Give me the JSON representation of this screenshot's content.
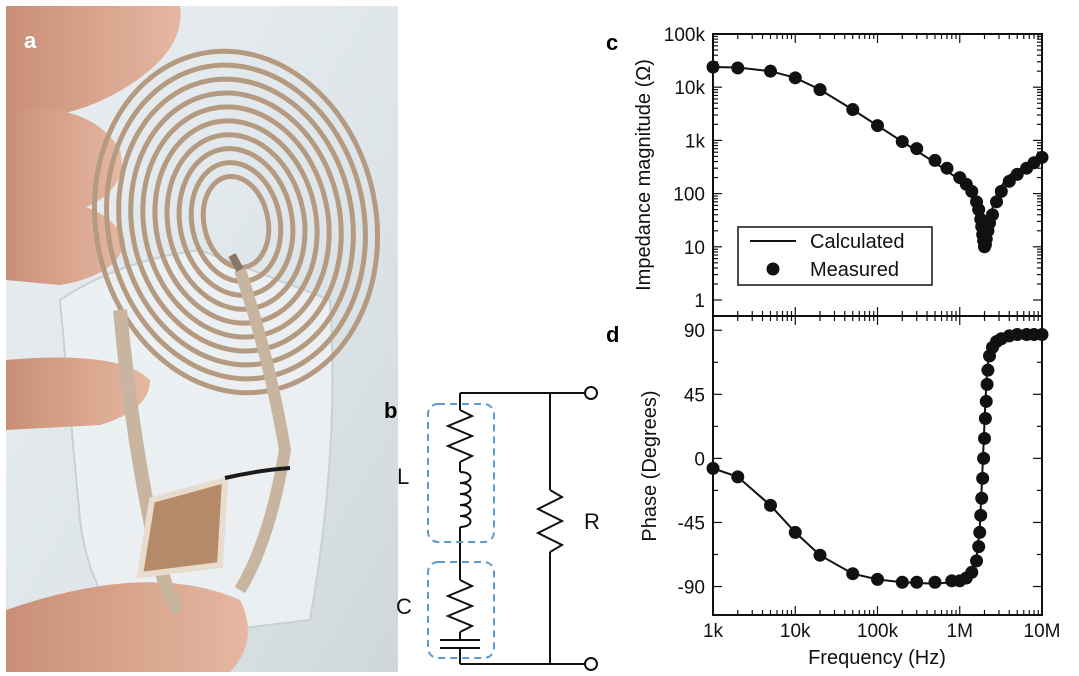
{
  "panels": {
    "a": "a",
    "b": "b",
    "c": "c",
    "d": "d"
  },
  "circuit": {
    "labels": {
      "L": "L",
      "C": "C",
      "R": "R"
    },
    "box_color": "#5b9bd5"
  },
  "chart_data": [
    {
      "id": "c",
      "type": "line",
      "xlabel": "Frequency (Hz)",
      "ylabel": "Impedance magnitude (Ω)",
      "xscale": "log",
      "yscale": "log",
      "xlim": [
        1000,
        10000000
      ],
      "ylim": [
        0.5,
        100000
      ],
      "x_ticks": [
        "1k",
        "10k",
        "100k",
        "1M",
        "10M"
      ],
      "y_ticks": [
        "1",
        "10",
        "100",
        "1k",
        "10k",
        "100k"
      ],
      "legend_position": "bottom-left",
      "series": [
        {
          "name": "Calculated",
          "style": "line",
          "x": [
            1000,
            2000,
            5000,
            10000,
            20000,
            50000,
            100000,
            200000,
            500000,
            1000000,
            1300000,
            1600000,
            1800000,
            1900000,
            2000000,
            2100000,
            2300000,
            2600000,
            3000000,
            4000000,
            6000000,
            10000000
          ],
          "y": [
            24000,
            23500,
            20000,
            15000,
            9000,
            3800,
            1900,
            950,
            380,
            180,
            110,
            55,
            25,
            16,
            11,
            14,
            30,
            70,
            120,
            220,
            320,
            500
          ]
        },
        {
          "name": "Measured",
          "style": "marker",
          "x": [
            1000,
            2000,
            5000,
            10000,
            20000,
            50000,
            100000,
            200000,
            300000,
            500000,
            700000,
            1000000,
            1200000,
            1400000,
            1600000,
            1700000,
            1800000,
            1850000,
            1900000,
            1950000,
            2000000,
            2050000,
            2100000,
            2200000,
            2300000,
            2500000,
            2800000,
            3200000,
            4000000,
            5000000,
            6500000,
            8000000,
            10000000
          ],
          "y": [
            24000,
            23000,
            20000,
            15000,
            9000,
            3800,
            1900,
            950,
            700,
            420,
            300,
            200,
            150,
            110,
            70,
            50,
            33,
            24,
            17,
            13,
            10,
            11,
            14,
            20,
            28,
            40,
            70,
            110,
            170,
            230,
            300,
            380,
            480
          ]
        }
      ]
    },
    {
      "id": "d",
      "type": "line",
      "xlabel": "Frequency (Hz)",
      "ylabel": "Phase (Degrees)",
      "xscale": "log",
      "xlim": [
        1000,
        10000000
      ],
      "ylim": [
        -110,
        100
      ],
      "x_ticks": [
        "1k",
        "10k",
        "100k",
        "1M",
        "10M"
      ],
      "y_ticks": [
        "-90",
        "-45",
        "0",
        "45",
        "90"
      ],
      "series": [
        {
          "name": "Calculated",
          "style": "line",
          "x": [
            1000,
            2000,
            5000,
            10000,
            20000,
            50000,
            100000,
            200000,
            500000,
            800000,
            1000000,
            1200000,
            1400000,
            1600000,
            1750000,
            1850000,
            1950000,
            2050000,
            2150000,
            2300000,
            2600000,
            3000000,
            4000000,
            6000000,
            10000000
          ],
          "y": [
            -7,
            -13,
            -33,
            -52,
            -68,
            -81,
            -85,
            -87,
            -88,
            -87,
            -86,
            -84,
            -80,
            -70,
            -50,
            -20,
            10,
            40,
            62,
            75,
            82,
            85,
            87,
            87,
            87
          ]
        },
        {
          "name": "Measured",
          "style": "marker",
          "x": [
            1000,
            2000,
            5000,
            10000,
            20000,
            50000,
            100000,
            200000,
            300000,
            500000,
            800000,
            1000000,
            1200000,
            1400000,
            1600000,
            1700000,
            1750000,
            1800000,
            1850000,
            1900000,
            1950000,
            2000000,
            2050000,
            2100000,
            2150000,
            2200000,
            2300000,
            2500000,
            2800000,
            3200000,
            4000000,
            5000000,
            6500000,
            8000000,
            10000000
          ],
          "y": [
            -7,
            -13,
            -33,
            -52,
            -68,
            -81,
            -85,
            -87,
            -87,
            -87,
            -86,
            -86,
            -84,
            -80,
            -72,
            -62,
            -52,
            -40,
            -28,
            -14,
            0,
            14,
            28,
            40,
            52,
            62,
            72,
            78,
            82,
            84,
            86,
            87,
            87,
            87,
            87
          ]
        }
      ]
    }
  ]
}
